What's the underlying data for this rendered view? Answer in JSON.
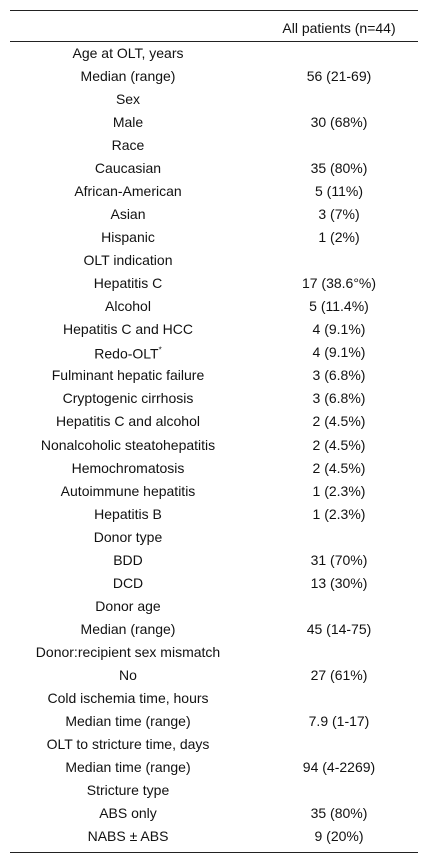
{
  "table": {
    "header": "All patients (n=44)",
    "rows": [
      {
        "label": "Age at OLT, years"
      },
      {
        "label": "Median (range)",
        "value": "56 (21-69)"
      },
      {
        "label": "Sex"
      },
      {
        "label": "Male",
        "value": "30 (68%)"
      },
      {
        "label": "Race"
      },
      {
        "label": "Caucasian",
        "value": "35 (80%)"
      },
      {
        "label": "African-American",
        "value": "5 (11%)"
      },
      {
        "label": "Asian",
        "value": "3 (7%)"
      },
      {
        "label": "Hispanic",
        "value": "1 (2%)"
      },
      {
        "label": "OLT indication"
      },
      {
        "label": "Hepatitis C",
        "value": "17 (38.6°%)"
      },
      {
        "label": "Alcohol",
        "value": "5 (11.4%)"
      },
      {
        "label": "Hepatitis C and HCC",
        "value": "4 (9.1%)"
      },
      {
        "label": "Redo-OLT",
        "mark": "*",
        "value": "4 (9.1%)"
      },
      {
        "label": "Fulminant hepatic failure",
        "value": "3 (6.8%)"
      },
      {
        "label": "Cryptogenic cirrhosis",
        "value": "3 (6.8%)"
      },
      {
        "label": "Hepatitis C and alcohol",
        "value": "2 (4.5%)"
      },
      {
        "label": "Nonalcoholic steatohepatitis",
        "value": "2 (4.5%)"
      },
      {
        "label": "Hemochromatosis",
        "value": "2 (4.5%)"
      },
      {
        "label": "Autoimmune hepatitis",
        "value": "1 (2.3%)"
      },
      {
        "label": "Hepatitis B",
        "value": "1 (2.3%)"
      },
      {
        "label": "Donor type"
      },
      {
        "label": "BDD",
        "value": "31 (70%)"
      },
      {
        "label": "DCD",
        "value": "13 (30%)"
      },
      {
        "label": "Donor age"
      },
      {
        "label": "Median (range)",
        "value": "45 (14-75)"
      },
      {
        "label": "Donor:recipient sex mismatch"
      },
      {
        "label": "No",
        "value": "27 (61%)"
      },
      {
        "label": "Cold ischemia time, hours"
      },
      {
        "label": "Median time (range)",
        "value": "7.9 (1-17)"
      },
      {
        "label": "OLT to stricture time, days"
      },
      {
        "label": "Median time (range)",
        "value": "94 (4-2269)"
      },
      {
        "label": "Stricture type"
      },
      {
        "label": "ABS only",
        "value": "35 (80%)"
      },
      {
        "label": "NABS ± ABS",
        "value": "9 (20%)"
      }
    ]
  }
}
